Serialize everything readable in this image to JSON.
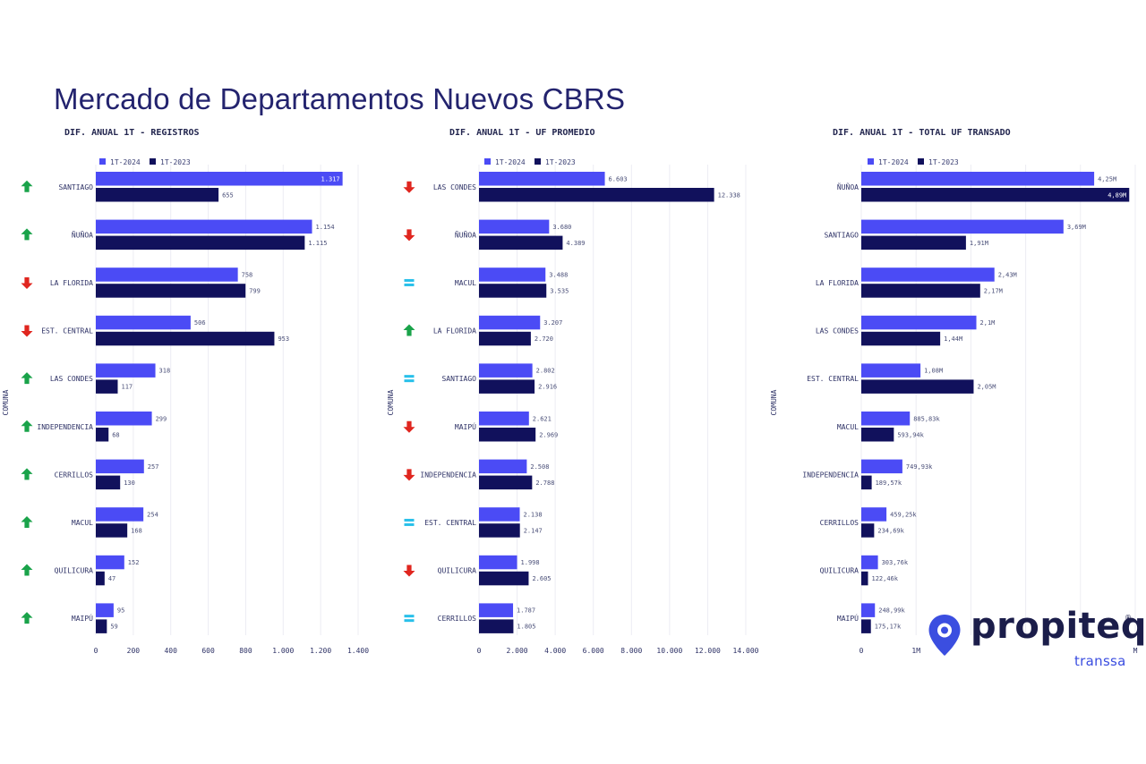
{
  "page": {
    "title": "Mercado de Departamentos Nuevos CBRS"
  },
  "legend": {
    "current": "1T-2024",
    "previous": "1T-2023"
  },
  "axis": {
    "y_title": "COMUNA"
  },
  "colors": {
    "current": "#4b4bf5",
    "previous": "#11115c",
    "up": "#1aa34a",
    "down": "#e0261f",
    "equal": "#29c0ea"
  },
  "brand": {
    "name": "propiteq",
    "registered": "®",
    "subtitle": "transsa"
  },
  "chart_data": [
    {
      "type": "bar",
      "orientation": "horizontal",
      "title": "DIF. ANUAL 1T - REGISTROS",
      "ylabel": "COMUNA",
      "categories": [
        "SANTIAGO",
        "ÑUÑOA",
        "LA FLORIDA",
        "EST. CENTRAL",
        "LAS CONDES",
        "INDEPENDENCIA",
        "CERRILLOS",
        "MACUL",
        "QUILICURA",
        "MAIPÚ"
      ],
      "trend": [
        "up",
        "up",
        "down",
        "down",
        "up",
        "up",
        "up",
        "up",
        "up",
        "up"
      ],
      "series": [
        {
          "name": "1T-2024",
          "values": [
            1317,
            1154,
            758,
            506,
            318,
            299,
            257,
            254,
            152,
            95
          ],
          "labels": [
            "1.317",
            "1.154",
            "758",
            "506",
            "318",
            "299",
            "257",
            "254",
            "152",
            "95"
          ]
        },
        {
          "name": "1T-2023",
          "values": [
            655,
            1115,
            799,
            953,
            117,
            68,
            130,
            168,
            47,
            59
          ],
          "labels": [
            "655",
            "1.115",
            "799",
            "953",
            "117",
            "68",
            "130",
            "168",
            "47",
            "59"
          ]
        }
      ],
      "xlim": [
        0,
        1400
      ],
      "xticks": [
        0,
        200,
        400,
        600,
        800,
        1000,
        1200,
        1400
      ],
      "xtick_labels": [
        "0",
        "200",
        "400",
        "600",
        "800",
        "1.000",
        "1.200",
        "1.400"
      ],
      "legend": "top-left",
      "grid": true
    },
    {
      "type": "bar",
      "orientation": "horizontal",
      "title": "DIF. ANUAL 1T - UF PROMEDIO",
      "ylabel": "COMUNA",
      "categories": [
        "LAS CONDES",
        "ÑUÑOA",
        "MACUL",
        "LA FLORIDA",
        "SANTIAGO",
        "MAIPÚ",
        "INDEPENDENCIA",
        "EST. CENTRAL",
        "QUILICURA",
        "CERRILLOS"
      ],
      "trend": [
        "down",
        "down",
        "equal",
        "up",
        "equal",
        "down",
        "down",
        "equal",
        "down",
        "equal"
      ],
      "series": [
        {
          "name": "1T-2024",
          "values": [
            6603,
            3680,
            3488,
            3207,
            2802,
            2621,
            2508,
            2138,
            1998,
            1787
          ],
          "labels": [
            "6.603",
            "3.680",
            "3.488",
            "3.207",
            "2.802",
            "2.621",
            "2.508",
            "2.138",
            "1.998",
            "1.787"
          ]
        },
        {
          "name": "1T-2023",
          "values": [
            12338,
            4389,
            3535,
            2720,
            2916,
            2969,
            2788,
            2147,
            2605,
            1805
          ],
          "labels": [
            "12.338",
            "4.389",
            "3.535",
            "2.720",
            "2.916",
            "2.969",
            "2.788",
            "2.147",
            "2.605",
            "1.805"
          ]
        }
      ],
      "xlim": [
        0,
        14000
      ],
      "xticks": [
        0,
        2000,
        4000,
        6000,
        8000,
        10000,
        12000,
        14000
      ],
      "xtick_labels": [
        "0",
        "2.000",
        "4.000",
        "6.000",
        "8.000",
        "10.000",
        "12.000",
        "14.000"
      ],
      "legend": "top-left",
      "grid": true
    },
    {
      "type": "bar",
      "orientation": "horizontal",
      "title": "DIF. ANUAL 1T - TOTAL UF TRANSADO",
      "ylabel": "COMUNA",
      "categories": [
        "ÑUÑOA",
        "SANTIAGO",
        "LA FLORIDA",
        "LAS CONDES",
        "EST. CENTRAL",
        "MACUL",
        "INDEPENDENCIA",
        "CERRILLOS",
        "QUILICURA",
        "MAIPÚ"
      ],
      "trend": null,
      "series": [
        {
          "name": "1T-2024",
          "values": [
            4250000,
            3690000,
            2430000,
            2100000,
            1080000,
            885830,
            749930,
            459250,
            303760,
            248990
          ],
          "labels": [
            "4,25M",
            "3,69M",
            "2,43M",
            "2,1M",
            "1,08M",
            "885,83k",
            "749,93k",
            "459,25k",
            "303,76k",
            "248,99k"
          ]
        },
        {
          "name": "1T-2023",
          "values": [
            4890000,
            1910000,
            2170000,
            1440000,
            2050000,
            593940,
            189570,
            234690,
            122460,
            175170
          ],
          "labels": [
            "4,89M",
            "1,91M",
            "2,17M",
            "1,44M",
            "2,05M",
            "593,94k",
            "189,57k",
            "234,69k",
            "122,46k",
            "175,17k"
          ]
        }
      ],
      "xlim": [
        0,
        5000000
      ],
      "xticks": [
        0,
        1000000,
        5000000
      ],
      "xtick_labels": [
        "0",
        "1M",
        "M"
      ],
      "legend": "top-left",
      "grid": true
    }
  ]
}
